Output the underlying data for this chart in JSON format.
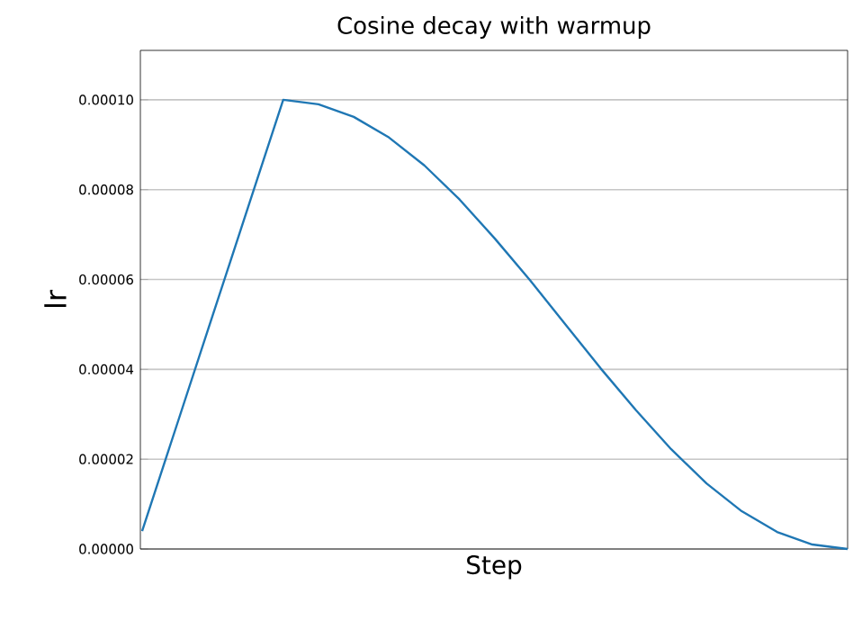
{
  "chart_data": {
    "type": "line",
    "title": "Cosine decay with warmup",
    "xlabel": "Step",
    "ylabel": "lr",
    "categories": [
      null,
      null,
      null,
      null,
      null,
      null,
      null,
      null,
      null,
      null,
      null,
      null,
      null,
      null,
      null,
      null,
      null,
      null,
      null,
      null,
      null
    ],
    "values": [
      4e-06,
      2.8e-05,
      5.2e-05,
      7.6e-05,
      0.0001,
      9.9e-05,
      9.62e-05,
      9.16e-05,
      8.54e-05,
      7.78e-05,
      6.91e-05,
      5.98e-05,
      5e-05,
      4.02e-05,
      3.09e-05,
      2.22e-05,
      1.46e-05,
      8.4e-06,
      3.8e-06,
      1e-06,
      0.0
    ],
    "color": "#1f77b4",
    "ylim": [
      0.0,
      0.000111
    ],
    "yticks": [
      {
        "value": 0.0,
        "label": "0.00000"
      },
      {
        "value": 2e-05,
        "label": "0.00002"
      },
      {
        "value": 4e-05,
        "label": "0.00004"
      },
      {
        "value": 6e-05,
        "label": "0.00006"
      },
      {
        "value": 8e-05,
        "label": "0.00008"
      },
      {
        "value": 0.0001,
        "label": "0.00010"
      }
    ],
    "grid": "y"
  }
}
